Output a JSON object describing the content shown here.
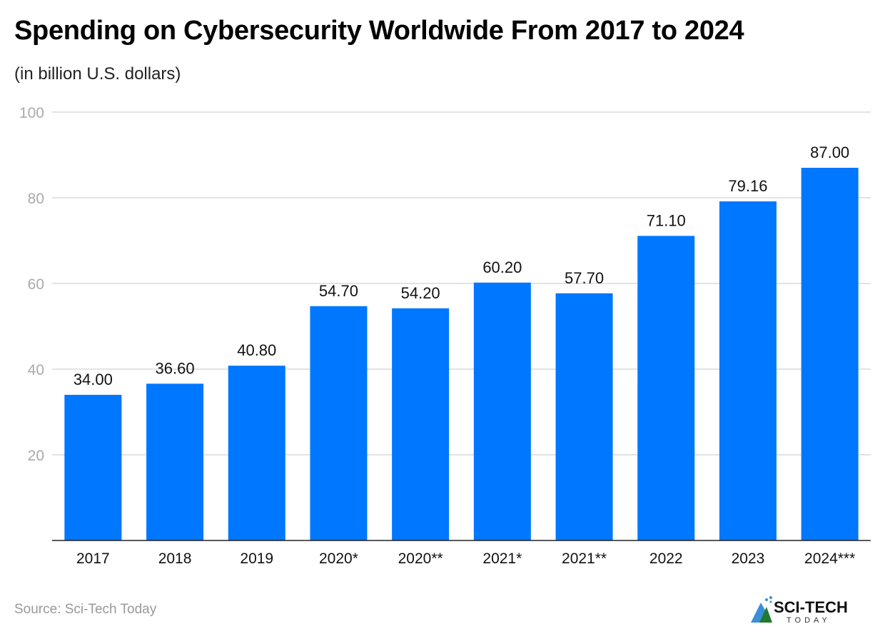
{
  "chart_data": {
    "type": "bar",
    "title": "Spending on Cybersecurity Worldwide From 2017 to 2024",
    "subtitle": "(in billion U.S. dollars)",
    "categories": [
      "2017",
      "2018",
      "2019",
      "2020*",
      "2020**",
      "2021*",
      "2021**",
      "2022",
      "2023",
      "2024***"
    ],
    "values": [
      34.0,
      36.6,
      40.8,
      54.7,
      54.2,
      60.2,
      57.7,
      71.1,
      79.16,
      87.0
    ],
    "data_labels": [
      "34.00",
      "36.60",
      "40.80",
      "54.70",
      "54.20",
      "60.20",
      "57.70",
      "71.10",
      "79.16",
      "87.00"
    ],
    "yticks": [
      20,
      40,
      60,
      80,
      100
    ],
    "ylim": [
      0,
      100
    ],
    "grid": true,
    "bar_color": "#0077ff",
    "source": "Source: Sci-Tech Today"
  },
  "logo": {
    "text": "SCI-TECH",
    "subtext": "TODAY"
  }
}
